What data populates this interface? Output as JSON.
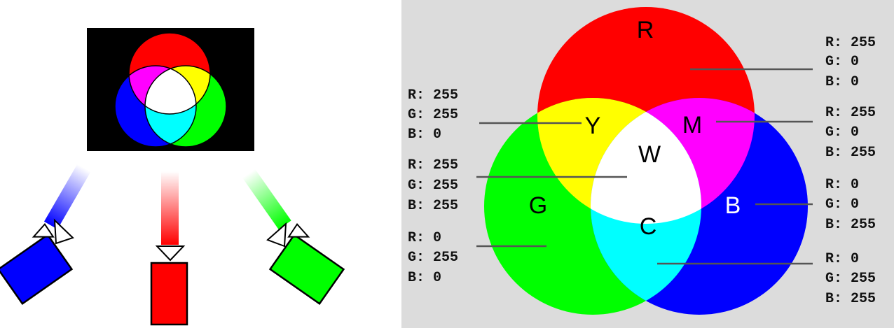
{
  "colors": {
    "red": "#ff0000",
    "green": "#00ff00",
    "blue": "#0000ff",
    "yellow": "#ffff00",
    "magenta": "#ff00ff",
    "cyan": "#00ffff",
    "white": "#ffffff",
    "panel_bg": "#dcdcdc",
    "screen_bg": "#000000",
    "leader_line": "#555555"
  },
  "regions": {
    "red": {
      "letter": "R",
      "r": "R: 255",
      "g": "G: 0",
      "b": "B: 0"
    },
    "yellow": {
      "letter": "Y",
      "r": "R: 255",
      "g": "G: 255",
      "b": "B: 0"
    },
    "magenta": {
      "letter": "M",
      "r": "R: 255",
      "g": "G: 0",
      "b": "B: 255"
    },
    "white": {
      "letter": "W",
      "r": "R: 255",
      "g": "G: 255",
      "b": "B: 255"
    },
    "green": {
      "letter": "G",
      "r": "R: 0",
      "g": "G: 255",
      "b": "B: 0"
    },
    "blue": {
      "letter": "B",
      "r": "R: 0",
      "g": "G: 0",
      "b": "B: 255"
    },
    "cyan": {
      "letter": "C",
      "r": "R: 0",
      "g": "G: 255",
      "b": "B: 255"
    }
  },
  "projectors": [
    {
      "name": "blue-projector",
      "color": "blue"
    },
    {
      "name": "red-projector",
      "color": "red"
    },
    {
      "name": "green-projector",
      "color": "green"
    }
  ]
}
